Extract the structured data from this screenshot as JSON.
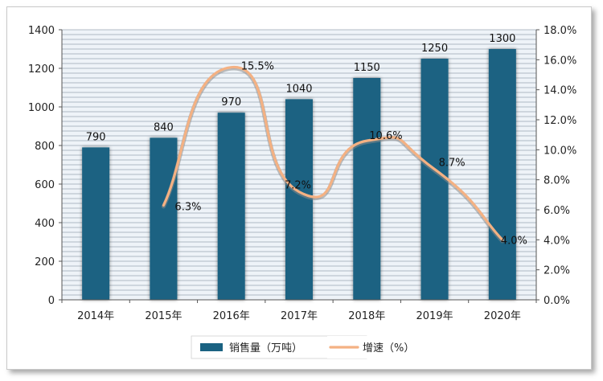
{
  "chart_data": {
    "type": "bar",
    "categories": [
      "2014年",
      "2015年",
      "2016年",
      "2017年",
      "2018年",
      "2019年",
      "2020年"
    ],
    "series": [
      {
        "name": "销售量（万吨）",
        "type": "bar",
        "axis": "left",
        "values": [
          790,
          840,
          970,
          1040,
          1150,
          1250,
          1300
        ],
        "labels": [
          "790",
          "840",
          "970",
          "1040",
          "1150",
          "1250",
          "1300"
        ]
      },
      {
        "name": "增速（%）",
        "type": "line",
        "axis": "right",
        "values": [
          null,
          6.3,
          15.5,
          7.2,
          10.6,
          8.7,
          4.0
        ],
        "labels": [
          "",
          "6.3%",
          "15.5%",
          "7.2%",
          "10.6%",
          "8.7%",
          "4.0%"
        ]
      }
    ],
    "y_left": {
      "min": 0,
      "max": 1400,
      "step": 200,
      "ticks": [
        "0",
        "200",
        "400",
        "600",
        "800",
        "1000",
        "1200",
        "1400"
      ]
    },
    "y_right": {
      "min": 0,
      "max": 18,
      "step": 2,
      "ticks": [
        "0.0%",
        "2.0%",
        "4.0%",
        "6.0%",
        "8.0%",
        "10.0%",
        "12.0%",
        "14.0%",
        "16.0%",
        "18.0%"
      ]
    },
    "legend_position": "bottom",
    "grid": true,
    "colors": {
      "bar": "#1a6282",
      "line": "#f4b183",
      "plot_bg": "#eef3f8",
      "grid": "#9aa6b2"
    }
  }
}
